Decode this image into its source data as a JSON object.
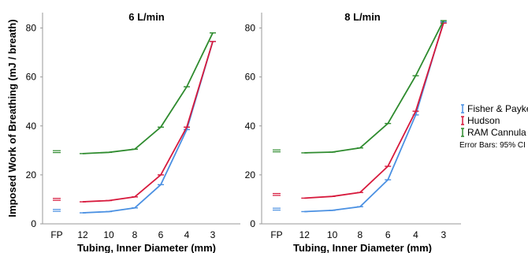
{
  "chart_data": {
    "type": "line",
    "ylabel": "Imposed Work of Breathing (mJ / breath)",
    "yticks": [
      0,
      20,
      40,
      60,
      80
    ],
    "ylim": [
      0,
      85
    ],
    "x_categories": [
      "FP",
      "12",
      "10",
      "8",
      "6",
      "4",
      "3"
    ],
    "xlabel": "Tubing, Inner Diameter (mm)",
    "legend": {
      "placement": "right",
      "entries": [
        "Fisher & Paykel",
        "Hudson",
        "RAM Cannula"
      ],
      "note": "Error Bars: 95% CI"
    },
    "colors": {
      "Fisher & Paykel": "#4a90e2",
      "Hudson": "#d7193c",
      "RAM Cannula": "#2e8b2e"
    },
    "panels": [
      {
        "title": "6 L/min",
        "series": [
          {
            "name": "Fisher & Paykel",
            "fp": 5.5,
            "values": [
              4.5,
              5.0,
              6.5,
              16.0,
              38.5,
              74.5
            ]
          },
          {
            "name": "Hudson",
            "fp": 10.0,
            "values": [
              9.0,
              9.5,
              11.0,
              20.0,
              39.5,
              74.5
            ]
          },
          {
            "name": "RAM Cannula",
            "fp": 29.5,
            "values": [
              28.7,
              29.2,
              30.5,
              39.5,
              56.0,
              78.0
            ]
          }
        ]
      },
      {
        "title": "8 L/min",
        "series": [
          {
            "name": "Fisher & Paykel",
            "fp": 6.0,
            "values": [
              5.0,
              5.5,
              7.0,
              18.0,
              44.5,
              82.5
            ]
          },
          {
            "name": "Hudson",
            "fp": 12.0,
            "values": [
              10.5,
              11.2,
              12.8,
              23.5,
              46.0,
              82.0
            ]
          },
          {
            "name": "RAM Cannula",
            "fp": 29.8,
            "values": [
              29.0,
              29.3,
              31.0,
              41.0,
              60.5,
              83.0
            ]
          }
        ]
      }
    ]
  }
}
